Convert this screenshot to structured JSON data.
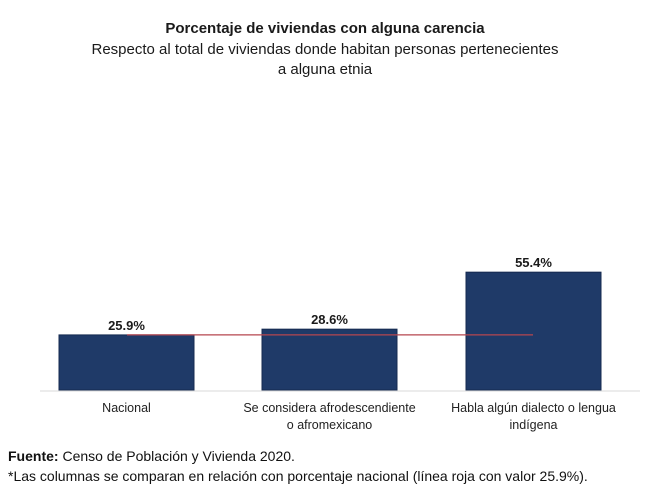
{
  "chart_data": {
    "type": "bar",
    "title": "Porcentaje de viviendas con alguna carencia",
    "subtitle_lines": [
      "Respecto al total de viviendas donde habitan personas pertenecientes",
      "a alguna etnia"
    ],
    "categories": [
      [
        "Nacional"
      ],
      [
        "Se considera afrodescendiente",
        "o afromexicano"
      ],
      [
        "Habla algún dialecto o lengua",
        "indígena"
      ]
    ],
    "values": [
      25.9,
      28.6,
      55.4
    ],
    "value_labels": [
      "25.9%",
      "28.6%",
      "55.4%"
    ],
    "reference_line": {
      "value": 25.9,
      "color": "#b5464f",
      "label": "línea roja"
    },
    "bar_color": "#1f3a68",
    "xlabel": "",
    "ylabel": "",
    "ylim": [
      0,
      60
    ],
    "grid": false,
    "legend": "none"
  },
  "footer": {
    "source_label": "Fuente:",
    "source_text": " Censo de Población y Vivienda 2020.",
    "note": "*Las columnas se comparan en relación con porcentaje nacional (línea roja con valor 25.9%)."
  }
}
